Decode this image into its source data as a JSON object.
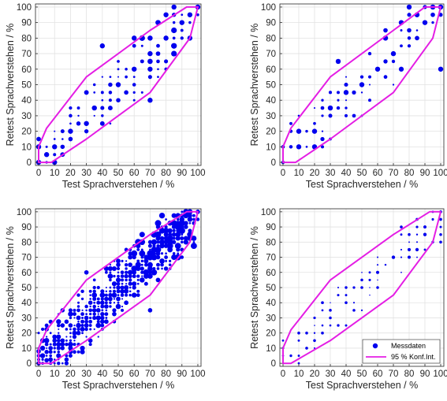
{
  "colors": {
    "points": "#0000ee",
    "ellipse": "#e41ee4",
    "axes": "#262626",
    "grid": "#e2e2e2"
  },
  "chart_data": [
    {
      "type": "scatter",
      "xlabel": "Test Sprachverstehen / %",
      "ylabel": "Retest Sprachverstehen / %",
      "xlim": [
        -2,
        102
      ],
      "ylim": [
        -2,
        102
      ],
      "xticks": [
        0,
        10,
        20,
        30,
        40,
        50,
        60,
        70,
        80,
        90,
        100
      ],
      "yticks": [
        0,
        10,
        20,
        30,
        40,
        50,
        60,
        70,
        80,
        90,
        100
      ],
      "grid": true,
      "marker_size_encodes": "count",
      "series": [
        {
          "name": "Messdaten",
          "density": "high",
          "band": 24,
          "spread": 0.9,
          "points": [
            [
              0,
              0
            ],
            [
              0,
              10
            ],
            [
              5,
              5
            ],
            [
              10,
              0
            ],
            [
              10,
              10
            ],
            [
              20,
              20
            ],
            [
              30,
              25
            ],
            [
              35,
              35
            ],
            [
              50,
              50
            ],
            [
              60,
              60
            ],
            [
              70,
              70
            ],
            [
              80,
              80
            ],
            [
              90,
              90
            ],
            [
              100,
              100
            ],
            [
              85,
              100
            ],
            [
              95,
              95
            ],
            [
              80,
              95
            ],
            [
              40,
              75
            ],
            [
              70,
              40
            ],
            [
              60,
              80
            ]
          ]
        },
        {
          "name": "95 % Konf.Int.",
          "kind": "ellipse",
          "points": [
            [
              0,
              0
            ],
            [
              8,
              0
            ],
            [
              30,
              15
            ],
            [
              70,
              45
            ],
            [
              95,
              80
            ],
            [
              100,
              100
            ],
            [
              93,
              100
            ],
            [
              70,
              85
            ],
            [
              30,
              55
            ],
            [
              5,
              22
            ],
            [
              0,
              10
            ]
          ]
        }
      ]
    },
    {
      "type": "scatter",
      "xlabel": "Test Sprachverstehen / %",
      "ylabel": "Retest Sprachverstehen / %",
      "xlim": [
        -2,
        102
      ],
      "ylim": [
        -2,
        102
      ],
      "xticks": [
        0,
        10,
        20,
        30,
        40,
        50,
        60,
        70,
        80,
        90,
        100
      ],
      "yticks": [
        0,
        10,
        20,
        30,
        40,
        50,
        60,
        70,
        80,
        90,
        100
      ],
      "grid": true,
      "marker_size_encodes": "count",
      "series": [
        {
          "name": "Messdaten",
          "density": "low",
          "band": 20,
          "spread": 0.75,
          "points": [
            [
              10,
              10
            ],
            [
              10,
              20
            ],
            [
              20,
              10
            ],
            [
              20,
              20
            ],
            [
              30,
              35
            ],
            [
              35,
              65
            ],
            [
              40,
              45
            ],
            [
              50,
              50
            ],
            [
              60,
              60
            ],
            [
              70,
              70
            ],
            [
              75,
              90
            ],
            [
              80,
              100
            ],
            [
              85,
              95
            ],
            [
              90,
              90
            ],
            [
              100,
              100
            ],
            [
              100,
              60
            ]
          ]
        },
        {
          "name": "95 % Konf.Int.",
          "kind": "ellipse",
          "points": [
            [
              0,
              0
            ],
            [
              8,
              0
            ],
            [
              30,
              15
            ],
            [
              70,
              45
            ],
            [
              95,
              80
            ],
            [
              100,
              100
            ],
            [
              90,
              100
            ],
            [
              70,
              85
            ],
            [
              30,
              55
            ],
            [
              5,
              22
            ],
            [
              0,
              10
            ]
          ]
        }
      ]
    },
    {
      "type": "scatter",
      "xlabel": "Test Sprachverstehen / %",
      "ylabel": "Retest Sprachverstehen / %",
      "xlim": [
        -2,
        102
      ],
      "ylim": [
        -2,
        102
      ],
      "xticks": [
        0,
        10,
        20,
        30,
        40,
        50,
        60,
        70,
        80,
        90,
        100
      ],
      "yticks": [
        0,
        10,
        20,
        30,
        40,
        50,
        60,
        70,
        80,
        90,
        100
      ],
      "grid": true,
      "marker_size_encodes": "count",
      "series": [
        {
          "name": "Messdaten",
          "density": "very-high",
          "band": 22,
          "spread": 1.0,
          "points": [
            [
              0,
              0
            ],
            [
              0,
              8
            ],
            [
              5,
              2
            ],
            [
              10,
              15
            ],
            [
              20,
              25
            ],
            [
              30,
              30
            ],
            [
              40,
              40
            ],
            [
              50,
              50
            ],
            [
              60,
              60
            ],
            [
              70,
              70
            ],
            [
              80,
              85
            ],
            [
              85,
              90
            ],
            [
              90,
              95
            ],
            [
              95,
              100
            ],
            [
              100,
              100
            ],
            [
              30,
              60
            ],
            [
              70,
              35
            ]
          ]
        },
        {
          "name": "95 % Konf.Int.",
          "kind": "ellipse",
          "points": [
            [
              0,
              0
            ],
            [
              8,
              0
            ],
            [
              30,
              15
            ],
            [
              70,
              45
            ],
            [
              95,
              80
            ],
            [
              100,
              100
            ],
            [
              93,
              100
            ],
            [
              70,
              85
            ],
            [
              30,
              55
            ],
            [
              5,
              22
            ],
            [
              0,
              10
            ]
          ]
        }
      ]
    },
    {
      "type": "scatter",
      "xlabel": "Test Sprachverstehen / %",
      "ylabel": "Retest Sprachverstehen / %",
      "xlim": [
        -2,
        102
      ],
      "ylim": [
        -2,
        102
      ],
      "xticks": [
        0,
        10,
        20,
        30,
        40,
        50,
        60,
        70,
        80,
        90,
        100
      ],
      "yticks": [
        0,
        10,
        20,
        30,
        40,
        50,
        60,
        70,
        80,
        90,
        100
      ],
      "grid": true,
      "marker_size_encodes": "count",
      "legend": {
        "placement": "bottom-right",
        "entries": [
          "Messdaten",
          "95 % Konf.Int."
        ]
      },
      "series": [
        {
          "name": "Messdaten",
          "density": "medium",
          "band": 18,
          "spread": 0.7,
          "points": [
            [
              10,
              20
            ],
            [
              15,
              20
            ],
            [
              20,
              15
            ],
            [
              25,
              40
            ],
            [
              30,
              35
            ],
            [
              40,
              40
            ],
            [
              50,
              50
            ],
            [
              60,
              60
            ],
            [
              70,
              70
            ],
            [
              75,
              90
            ],
            [
              80,
              85
            ],
            [
              85,
              95
            ],
            [
              90,
              90
            ],
            [
              100,
              100
            ],
            [
              100,
              80
            ]
          ]
        },
        {
          "name": "95 % Konf.Int.",
          "kind": "ellipse",
          "points": [
            [
              0,
              0
            ],
            [
              5,
              0
            ],
            [
              30,
              15
            ],
            [
              70,
              45
            ],
            [
              95,
              80
            ],
            [
              100,
              100
            ],
            [
              93,
              100
            ],
            [
              70,
              85
            ],
            [
              30,
              55
            ],
            [
              5,
              22
            ],
            [
              0,
              10
            ]
          ]
        }
      ]
    }
  ]
}
